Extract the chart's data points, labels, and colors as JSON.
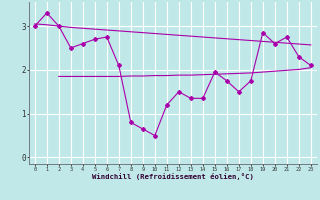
{
  "xlabel": "Windchill (Refroidissement éolien,°C)",
  "xlim": [
    -0.5,
    23.5
  ],
  "ylim": [
    -0.15,
    3.55
  ],
  "yticks": [
    0,
    1,
    2,
    3
  ],
  "xticks": [
    0,
    1,
    2,
    3,
    4,
    5,
    6,
    7,
    8,
    9,
    10,
    11,
    12,
    13,
    14,
    15,
    16,
    17,
    18,
    19,
    20,
    21,
    22,
    23
  ],
  "bg_color": "#c0e8e8",
  "grid_color": "#a0d0d0",
  "line_color": "#aa00aa",
  "line1_x": [
    0,
    1,
    2,
    3,
    4,
    5,
    6,
    7,
    8,
    9,
    10,
    11,
    12,
    13,
    14,
    15,
    16,
    17,
    18,
    19,
    20,
    21,
    22,
    23
  ],
  "line1_y": [
    3.0,
    3.3,
    3.0,
    2.5,
    2.6,
    2.7,
    2.75,
    2.1,
    0.8,
    0.65,
    0.5,
    1.2,
    1.5,
    1.35,
    1.35,
    1.95,
    1.75,
    1.5,
    1.75,
    2.85,
    2.6,
    2.75,
    2.3,
    2.1
  ],
  "line2_x": [
    0,
    1,
    2,
    3,
    4,
    5,
    6,
    7,
    8,
    9,
    10,
    11,
    12,
    13,
    14,
    15,
    16,
    17,
    18,
    19,
    20,
    21,
    22,
    23
  ],
  "line2_y": [
    3.05,
    3.03,
    3.0,
    2.97,
    2.95,
    2.93,
    2.91,
    2.89,
    2.87,
    2.85,
    2.83,
    2.81,
    2.79,
    2.77,
    2.75,
    2.73,
    2.71,
    2.69,
    2.67,
    2.65,
    2.63,
    2.61,
    2.59,
    2.57
  ],
  "line3_x": [
    2,
    3,
    4,
    5,
    6,
    7,
    8,
    9,
    10,
    11,
    12,
    13,
    14,
    15,
    16,
    17,
    18,
    19,
    20,
    21,
    22,
    23
  ],
  "line3_y": [
    1.85,
    1.85,
    1.85,
    1.85,
    1.85,
    1.85,
    1.86,
    1.86,
    1.87,
    1.87,
    1.88,
    1.88,
    1.89,
    1.9,
    1.91,
    1.92,
    1.93,
    1.95,
    1.97,
    1.99,
    2.01,
    2.05
  ]
}
